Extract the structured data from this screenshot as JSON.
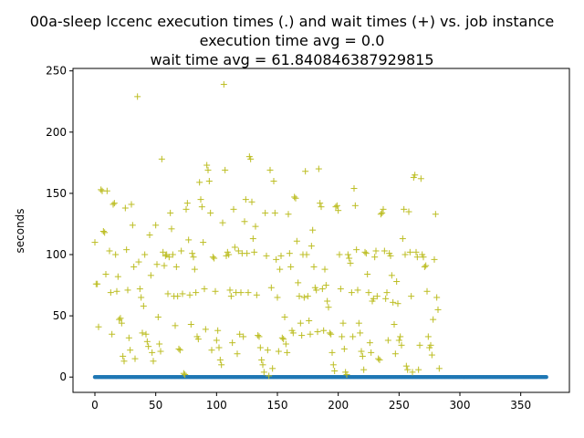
{
  "chart_data": {
    "type": "scatter",
    "title_lines": [
      "00a-sleep lccenc execution times (.) and wait times (+) vs. job instance",
      "execution time avg = 0.0",
      "wait time avg = 61.840846387929815"
    ],
    "xlabel": "",
    "ylabel": "seconds",
    "xlim": [
      -18,
      390
    ],
    "ylim": [
      -12.5,
      252
    ],
    "xticks": [
      0,
      50,
      100,
      150,
      200,
      250,
      300,
      350
    ],
    "yticks": [
      0,
      50,
      100,
      150,
      200,
      250
    ],
    "colors": {
      "execution": "#1f77b4",
      "wait": "#bcbd22"
    },
    "series": [
      {
        "name": "execution times",
        "marker": ".",
        "x_start": 0,
        "x_end": 371,
        "value": 0
      },
      {
        "name": "wait times",
        "marker": "+",
        "points": [
          [
            0,
            110
          ],
          [
            1,
            76
          ],
          [
            2,
            76
          ],
          [
            3,
            41
          ],
          [
            5,
            153
          ],
          [
            6,
            152
          ],
          [
            7,
            119
          ],
          [
            8,
            118
          ],
          [
            9,
            84
          ],
          [
            10,
            152
          ],
          [
            12,
            103
          ],
          [
            13,
            69
          ],
          [
            14,
            35
          ],
          [
            15,
            141
          ],
          [
            16,
            142
          ],
          [
            17,
            100
          ],
          [
            18,
            70
          ],
          [
            19,
            82
          ],
          [
            20,
            47
          ],
          [
            21,
            48
          ],
          [
            22,
            44
          ],
          [
            23,
            17
          ],
          [
            24,
            13
          ],
          [
            25,
            138
          ],
          [
            26,
            104
          ],
          [
            27,
            71
          ],
          [
            28,
            32
          ],
          [
            29,
            22
          ],
          [
            30,
            141
          ],
          [
            31,
            124
          ],
          [
            32,
            90
          ],
          [
            33,
            15
          ],
          [
            35,
            229
          ],
          [
            36,
            94
          ],
          [
            37,
            72
          ],
          [
            38,
            65
          ],
          [
            39,
            36
          ],
          [
            40,
            58
          ],
          [
            41,
            100
          ],
          [
            42,
            35
          ],
          [
            43,
            29
          ],
          [
            44,
            25
          ],
          [
            45,
            116
          ],
          [
            46,
            83
          ],
          [
            47,
            20
          ],
          [
            48,
            13
          ],
          [
            50,
            124
          ],
          [
            51,
            92
          ],
          [
            52,
            49
          ],
          [
            53,
            27
          ],
          [
            54,
            21
          ],
          [
            55,
            178
          ],
          [
            56,
            102
          ],
          [
            57,
            91
          ],
          [
            58,
            99
          ],
          [
            59,
            100
          ],
          [
            60,
            68
          ],
          [
            61,
            98
          ],
          [
            62,
            134
          ],
          [
            63,
            121
          ],
          [
            64,
            100
          ],
          [
            65,
            66
          ],
          [
            66,
            42
          ],
          [
            67,
            90
          ],
          [
            68,
            66
          ],
          [
            69,
            23
          ],
          [
            70,
            22
          ],
          [
            71,
            103
          ],
          [
            72,
            68
          ],
          [
            73,
            3
          ],
          [
            74,
            2
          ],
          [
            75,
            137
          ],
          [
            76,
            142
          ],
          [
            77,
            112
          ],
          [
            78,
            67
          ],
          [
            79,
            43
          ],
          [
            80,
            101
          ],
          [
            81,
            98
          ],
          [
            82,
            88
          ],
          [
            83,
            69
          ],
          [
            84,
            33
          ],
          [
            85,
            31
          ],
          [
            86,
            159
          ],
          [
            87,
            145
          ],
          [
            88,
            139
          ],
          [
            89,
            110
          ],
          [
            90,
            72
          ],
          [
            91,
            39
          ],
          [
            92,
            173
          ],
          [
            93,
            169
          ],
          [
            94,
            160
          ],
          [
            95,
            134
          ],
          [
            96,
            22
          ],
          [
            97,
            98
          ],
          [
            98,
            97
          ],
          [
            99,
            70
          ],
          [
            100,
            30
          ],
          [
            101,
            38
          ],
          [
            102,
            24
          ],
          [
            103,
            14
          ],
          [
            104,
            10
          ],
          [
            105,
            126
          ],
          [
            106,
            239
          ],
          [
            107,
            169
          ],
          [
            108,
            99
          ],
          [
            109,
            102
          ],
          [
            110,
            100
          ],
          [
            111,
            71
          ],
          [
            112,
            66
          ],
          [
            113,
            28
          ],
          [
            114,
            137
          ],
          [
            115,
            106
          ],
          [
            116,
            69
          ],
          [
            117,
            19
          ],
          [
            118,
            103
          ],
          [
            119,
            35
          ],
          [
            120,
            69
          ],
          [
            121,
            101
          ],
          [
            122,
            33
          ],
          [
            123,
            127
          ],
          [
            124,
            145
          ],
          [
            125,
            101
          ],
          [
            126,
            69
          ],
          [
            127,
            180
          ],
          [
            128,
            178
          ],
          [
            129,
            143
          ],
          [
            130,
            113
          ],
          [
            131,
            102
          ],
          [
            132,
            123
          ],
          [
            133,
            67
          ],
          [
            134,
            34
          ],
          [
            135,
            33
          ],
          [
            136,
            24
          ],
          [
            137,
            14
          ],
          [
            138,
            10
          ],
          [
            139,
            4
          ],
          [
            140,
            134
          ],
          [
            141,
            99
          ],
          [
            142,
            22
          ],
          [
            143,
            1
          ],
          [
            144,
            169
          ],
          [
            145,
            73
          ],
          [
            146,
            7
          ],
          [
            147,
            160
          ],
          [
            148,
            134
          ],
          [
            149,
            96
          ],
          [
            150,
            65
          ],
          [
            151,
            21
          ],
          [
            152,
            88
          ],
          [
            153,
            99
          ],
          [
            154,
            32
          ],
          [
            155,
            31
          ],
          [
            156,
            49
          ],
          [
            157,
            27
          ],
          [
            158,
            20
          ],
          [
            159,
            133
          ],
          [
            160,
            101
          ],
          [
            161,
            90
          ],
          [
            162,
            38
          ],
          [
            163,
            36
          ],
          [
            164,
            147
          ],
          [
            165,
            146
          ],
          [
            166,
            111
          ],
          [
            167,
            77
          ],
          [
            168,
            66
          ],
          [
            169,
            44
          ],
          [
            170,
            34
          ],
          [
            171,
            100
          ],
          [
            172,
            65
          ],
          [
            173,
            168
          ],
          [
            174,
            100
          ],
          [
            175,
            66
          ],
          [
            176,
            46
          ],
          [
            177,
            35
          ],
          [
            178,
            107
          ],
          [
            179,
            120
          ],
          [
            180,
            90
          ],
          [
            181,
            73
          ],
          [
            182,
            71
          ],
          [
            183,
            37
          ],
          [
            184,
            170
          ],
          [
            185,
            142
          ],
          [
            186,
            139
          ],
          [
            187,
            72
          ],
          [
            188,
            38
          ],
          [
            189,
            88
          ],
          [
            190,
            75
          ],
          [
            191,
            62
          ],
          [
            192,
            57
          ],
          [
            193,
            36
          ],
          [
            194,
            35
          ],
          [
            195,
            20
          ],
          [
            196,
            10
          ],
          [
            197,
            5
          ],
          [
            198,
            139
          ],
          [
            199,
            140
          ],
          [
            200,
            136
          ],
          [
            201,
            100
          ],
          [
            202,
            72
          ],
          [
            203,
            33
          ],
          [
            204,
            44
          ],
          [
            205,
            23
          ],
          [
            206,
            4
          ],
          [
            207,
            2
          ],
          [
            208,
            100
          ],
          [
            209,
            97
          ],
          [
            210,
            93
          ],
          [
            211,
            69
          ],
          [
            212,
            33
          ],
          [
            213,
            154
          ],
          [
            214,
            140
          ],
          [
            215,
            104
          ],
          [
            216,
            71
          ],
          [
            217,
            44
          ],
          [
            218,
            36
          ],
          [
            219,
            21
          ],
          [
            220,
            17
          ],
          [
            221,
            6
          ],
          [
            222,
            102
          ],
          [
            223,
            101
          ],
          [
            224,
            84
          ],
          [
            225,
            69
          ],
          [
            226,
            28
          ],
          [
            227,
            20
          ],
          [
            228,
            62
          ],
          [
            229,
            64
          ],
          [
            230,
            98
          ],
          [
            231,
            103
          ],
          [
            232,
            66
          ],
          [
            233,
            15
          ],
          [
            234,
            14
          ],
          [
            235,
            133
          ],
          [
            236,
            134
          ],
          [
            237,
            137
          ],
          [
            238,
            103
          ],
          [
            239,
            64
          ],
          [
            240,
            69
          ],
          [
            241,
            30
          ],
          [
            242,
            101
          ],
          [
            243,
            99
          ],
          [
            244,
            83
          ],
          [
            245,
            61
          ],
          [
            246,
            43
          ],
          [
            247,
            19
          ],
          [
            248,
            78
          ],
          [
            249,
            60
          ],
          [
            250,
            30
          ],
          [
            251,
            33
          ],
          [
            252,
            26
          ],
          [
            253,
            113
          ],
          [
            254,
            137
          ],
          [
            255,
            100
          ],
          [
            256,
            9
          ],
          [
            257,
            6
          ],
          [
            258,
            135
          ],
          [
            259,
            102
          ],
          [
            260,
            66
          ],
          [
            261,
            4
          ],
          [
            262,
            163
          ],
          [
            263,
            165
          ],
          [
            264,
            102
          ],
          [
            265,
            98
          ],
          [
            266,
            6
          ],
          [
            267,
            26
          ],
          [
            268,
            162
          ],
          [
            269,
            100
          ],
          [
            270,
            98
          ],
          [
            271,
            90
          ],
          [
            272,
            91
          ],
          [
            273,
            70
          ],
          [
            274,
            33
          ],
          [
            275,
            24
          ],
          [
            276,
            26
          ],
          [
            277,
            18
          ],
          [
            278,
            47
          ],
          [
            279,
            96
          ],
          [
            280,
            133
          ],
          [
            281,
            65
          ],
          [
            282,
            55
          ],
          [
            283,
            7
          ]
        ]
      }
    ]
  }
}
